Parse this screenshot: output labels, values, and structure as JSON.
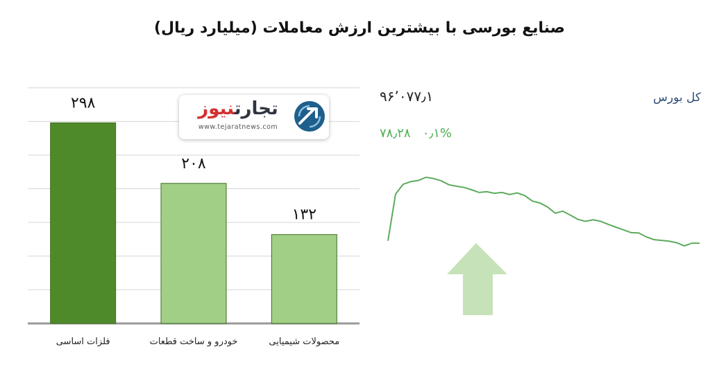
{
  "title": "صنایع بورسی با بیشترین ارزش معاملات  (میلیارد ریال)",
  "colors": {
    "bar_dark": "#4f8a2a",
    "bar_light": "#a2cf86",
    "grid": "#d6d6d6",
    "line": "#5cab5c",
    "arrow": "#c6e2b8",
    "index_name": "#2d4e77",
    "change": "#4caf50"
  },
  "logo": {
    "word_part1": "تجارت",
    "word_part2": "نیوز",
    "url": "www.tejaratnews.com",
    "icon": "tejaratnews-emblem-icon"
  },
  "index": {
    "name": "کل بورس",
    "value": "۹۶٬۰۷۷٫۱",
    "change": "۷۸٫۲۸",
    "change_pct": "۰٫۱%",
    "trend_icon": "up-arrow-icon"
  },
  "chart_data": [
    {
      "type": "bar",
      "categories": [
        "فلزات اساسی",
        "خودرو و ساخت قطعات",
        "محصولات شیمیایی"
      ],
      "values": [
        298,
        208,
        132
      ],
      "value_labels": [
        "۲۹۸",
        "۲۰۸",
        "۱۳۲"
      ],
      "ylim": [
        0,
        360
      ],
      "grid": true,
      "legend": "none"
    },
    {
      "type": "line",
      "y": [
        30,
        150,
        175,
        182,
        185,
        193,
        190,
        184,
        174,
        170,
        167,
        161,
        154,
        156,
        152,
        154,
        149,
        153,
        146,
        132,
        127,
        117,
        101,
        106,
        96,
        85,
        80,
        84,
        80,
        72,
        65,
        58,
        51,
        50,
        40,
        33,
        31,
        29,
        25,
        17,
        24,
        24
      ]
    }
  ]
}
